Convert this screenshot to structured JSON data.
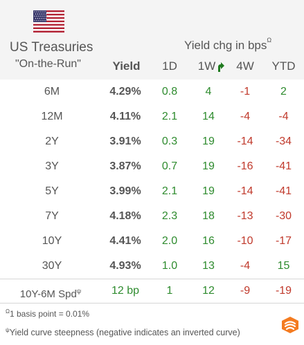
{
  "header": {
    "title": "US Treasuries",
    "subtitle": "\"On-the-Run\"",
    "yield_label": "Yield",
    "change_title": "Yield chg in bps",
    "change_title_mark": "Ω",
    "columns": [
      "1D",
      "1W",
      "4W",
      "YTD"
    ]
  },
  "rows": [
    {
      "tenor": "6M",
      "yield": "4.29%",
      "d1": "0.8",
      "w1": "4",
      "w4": "-1",
      "ytd": "2"
    },
    {
      "tenor": "12M",
      "yield": "4.11%",
      "d1": "2.1",
      "w1": "14",
      "w4": "-4",
      "ytd": "-4"
    },
    {
      "tenor": "2Y",
      "yield": "3.91%",
      "d1": "0.3",
      "w1": "19",
      "w4": "-14",
      "ytd": "-34"
    },
    {
      "tenor": "3Y",
      "yield": "3.87%",
      "d1": "0.7",
      "w1": "19",
      "w4": "-16",
      "ytd": "-41"
    },
    {
      "tenor": "5Y",
      "yield": "3.99%",
      "d1": "2.1",
      "w1": "19",
      "w4": "-14",
      "ytd": "-41"
    },
    {
      "tenor": "7Y",
      "yield": "4.18%",
      "d1": "2.3",
      "w1": "18",
      "w4": "-13",
      "ytd": "-30"
    },
    {
      "tenor": "10Y",
      "yield": "4.41%",
      "d1": "2.0",
      "w1": "16",
      "w4": "-10",
      "ytd": "-17"
    },
    {
      "tenor": "30Y",
      "yield": "4.93%",
      "d1": "1.0",
      "w1": "13",
      "w4": "-4",
      "ytd": "15"
    }
  ],
  "spread": {
    "label": "10Y-6M Spd",
    "mark": "ψ",
    "value": "12 bp",
    "d1": "1",
    "w1": "12",
    "w4": "-9",
    "ytd": "-19"
  },
  "notes": {
    "note1_mark": "Ω",
    "note1": "1 basis point = 0.01%",
    "note2_mark": "ψ",
    "note2": "Yield curve steepness (negative indicates an inverted curve)"
  },
  "colors": {
    "positive": "#2e8b2e",
    "negative": "#c0392b",
    "header_bg": "#f4f4f4",
    "logo": "#f47b20"
  },
  "icons": {
    "flag": "us-flag-icon",
    "arrow": "curved-arrow-up-icon",
    "logo": "brand-logo-icon"
  }
}
